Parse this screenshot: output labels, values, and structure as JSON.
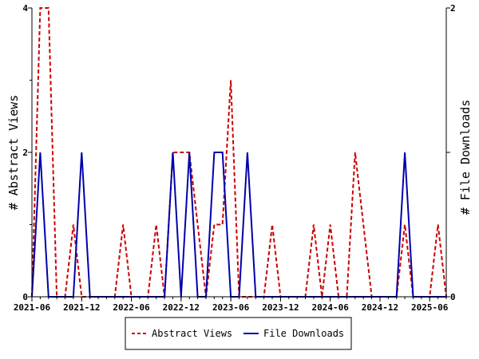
{
  "chart_data": {
    "type": "line",
    "ylabel_left": "# Abstract Views",
    "ylabel_right": "# File Downloads",
    "x_tick_labels": [
      "2021-06",
      "2021-12",
      "2022-06",
      "2022-12",
      "2023-06",
      "2023-12",
      "2024-06",
      "2024-12",
      "2025-06"
    ],
    "x_tick_months": [
      0,
      6,
      12,
      18,
      24,
      30,
      36,
      42,
      48
    ],
    "x_range_months": [
      0,
      50
    ],
    "ylim_left": [
      0,
      4
    ],
    "yticks_left": [
      "0",
      "2",
      "4"
    ],
    "ylim_right": [
      0,
      2
    ],
    "yticks_right": [
      "0",
      "1",
      "2"
    ],
    "legend_position": "bottom-center",
    "series": [
      {
        "name": "Abstract Views",
        "axis": "left",
        "color": "#cc0000",
        "style": "dashed",
        "points": [
          [
            "2021-06",
            0
          ],
          [
            "2021-07",
            4
          ],
          [
            "2021-08",
            4
          ],
          [
            "2021-09",
            0
          ],
          [
            "2021-10",
            0
          ],
          [
            "2021-11",
            1
          ],
          [
            "2021-12",
            0
          ],
          [
            "2022-01",
            0
          ],
          [
            "2022-02",
            0
          ],
          [
            "2022-03",
            0
          ],
          [
            "2022-04",
            0
          ],
          [
            "2022-05",
            1
          ],
          [
            "2022-06",
            0
          ],
          [
            "2022-07",
            0
          ],
          [
            "2022-08",
            0
          ],
          [
            "2022-09",
            1
          ],
          [
            "2022-10",
            0
          ],
          [
            "2022-11",
            2
          ],
          [
            "2022-12",
            2
          ],
          [
            "2023-01",
            2
          ],
          [
            "2023-02",
            1
          ],
          [
            "2023-03",
            0
          ],
          [
            "2023-04",
            1
          ],
          [
            "2023-05",
            1
          ],
          [
            "2023-06",
            3
          ],
          [
            "2023-07",
            0
          ],
          [
            "2023-08",
            0
          ],
          [
            "2023-09",
            0
          ],
          [
            "2023-10",
            0
          ],
          [
            "2023-11",
            1
          ],
          [
            "2023-12",
            0
          ],
          [
            "2024-01",
            0
          ],
          [
            "2024-02",
            0
          ],
          [
            "2024-03",
            0
          ],
          [
            "2024-04",
            1
          ],
          [
            "2024-05",
            0
          ],
          [
            "2024-06",
            1
          ],
          [
            "2024-07",
            0
          ],
          [
            "2024-08",
            0
          ],
          [
            "2024-09",
            2
          ],
          [
            "2024-10",
            1
          ],
          [
            "2024-11",
            0
          ],
          [
            "2024-12",
            0
          ],
          [
            "2025-01",
            0
          ],
          [
            "2025-02",
            0
          ],
          [
            "2025-03",
            1
          ],
          [
            "2025-04",
            0
          ],
          [
            "2025-05",
            0
          ],
          [
            "2025-06",
            0
          ],
          [
            "2025-07",
            1
          ],
          [
            "2025-08",
            0
          ]
        ]
      },
      {
        "name": "File Downloads",
        "axis": "right",
        "color": "#0000aa",
        "style": "solid",
        "points": [
          [
            "2021-06",
            0
          ],
          [
            "2021-07",
            1
          ],
          [
            "2021-08",
            0
          ],
          [
            "2021-09",
            0
          ],
          [
            "2021-10",
            0
          ],
          [
            "2021-11",
            0
          ],
          [
            "2021-12",
            1
          ],
          [
            "2022-01",
            0
          ],
          [
            "2022-02",
            0
          ],
          [
            "2022-03",
            0
          ],
          [
            "2022-04",
            0
          ],
          [
            "2022-05",
            0
          ],
          [
            "2022-06",
            0
          ],
          [
            "2022-07",
            0
          ],
          [
            "2022-08",
            0
          ],
          [
            "2022-09",
            0
          ],
          [
            "2022-10",
            0
          ],
          [
            "2022-11",
            1
          ],
          [
            "2022-12",
            0
          ],
          [
            "2023-01",
            1
          ],
          [
            "2023-02",
            0
          ],
          [
            "2023-03",
            0
          ],
          [
            "2023-04",
            1
          ],
          [
            "2023-05",
            1
          ],
          [
            "2023-06",
            0
          ],
          [
            "2023-07",
            0
          ],
          [
            "2023-08",
            1
          ],
          [
            "2023-09",
            0
          ],
          [
            "2023-10",
            0
          ],
          [
            "2023-11",
            0
          ],
          [
            "2023-12",
            0
          ],
          [
            "2024-01",
            0
          ],
          [
            "2024-02",
            0
          ],
          [
            "2024-03",
            0
          ],
          [
            "2024-04",
            0
          ],
          [
            "2024-05",
            0
          ],
          [
            "2024-06",
            0
          ],
          [
            "2024-07",
            0
          ],
          [
            "2024-08",
            0
          ],
          [
            "2024-09",
            0
          ],
          [
            "2024-10",
            0
          ],
          [
            "2024-11",
            0
          ],
          [
            "2024-12",
            0
          ],
          [
            "2025-01",
            0
          ],
          [
            "2025-02",
            0
          ],
          [
            "2025-03",
            1
          ],
          [
            "2025-04",
            0
          ],
          [
            "2025-05",
            0
          ],
          [
            "2025-06",
            0
          ],
          [
            "2025-07",
            0
          ],
          [
            "2025-08",
            0
          ]
        ]
      }
    ]
  }
}
